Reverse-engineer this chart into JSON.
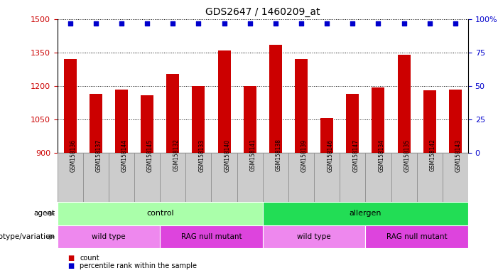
{
  "title": "GDS2647 / 1460209_at",
  "samples": [
    "GSM158136",
    "GSM158137",
    "GSM158144",
    "GSM158145",
    "GSM158132",
    "GSM158133",
    "GSM158140",
    "GSM158141",
    "GSM158138",
    "GSM158139",
    "GSM158146",
    "GSM158147",
    "GSM158134",
    "GSM158135",
    "GSM158142",
    "GSM158143"
  ],
  "counts": [
    1320,
    1165,
    1185,
    1160,
    1255,
    1200,
    1360,
    1200,
    1385,
    1320,
    1055,
    1165,
    1195,
    1340,
    1180,
    1185
  ],
  "percentile_value": 97,
  "bar_color": "#cc0000",
  "percentile_color": "#0000cc",
  "ylim_left": [
    900,
    1500
  ],
  "ylim_right": [
    0,
    100
  ],
  "yticks_left": [
    900,
    1050,
    1200,
    1350,
    1500
  ],
  "yticks_right": [
    0,
    25,
    50,
    75,
    100
  ],
  "ytick_labels_right": [
    "0",
    "25",
    "50",
    "75",
    "100%"
  ],
  "agent_groups": [
    {
      "label": "control",
      "start": 0,
      "end": 8,
      "color": "#aaffaa"
    },
    {
      "label": "allergen",
      "start": 8,
      "end": 16,
      "color": "#22dd55"
    }
  ],
  "genotype_groups": [
    {
      "label": "wild type",
      "start": 0,
      "end": 4,
      "color": "#ee88ee"
    },
    {
      "label": "RAG null mutant",
      "start": 4,
      "end": 8,
      "color": "#dd44dd"
    },
    {
      "label": "wild type",
      "start": 8,
      "end": 12,
      "color": "#ee88ee"
    },
    {
      "label": "RAG null mutant",
      "start": 12,
      "end": 16,
      "color": "#dd44dd"
    }
  ],
  "xticklabel_bg": "#cccccc",
  "xticklabel_border": "#888888"
}
